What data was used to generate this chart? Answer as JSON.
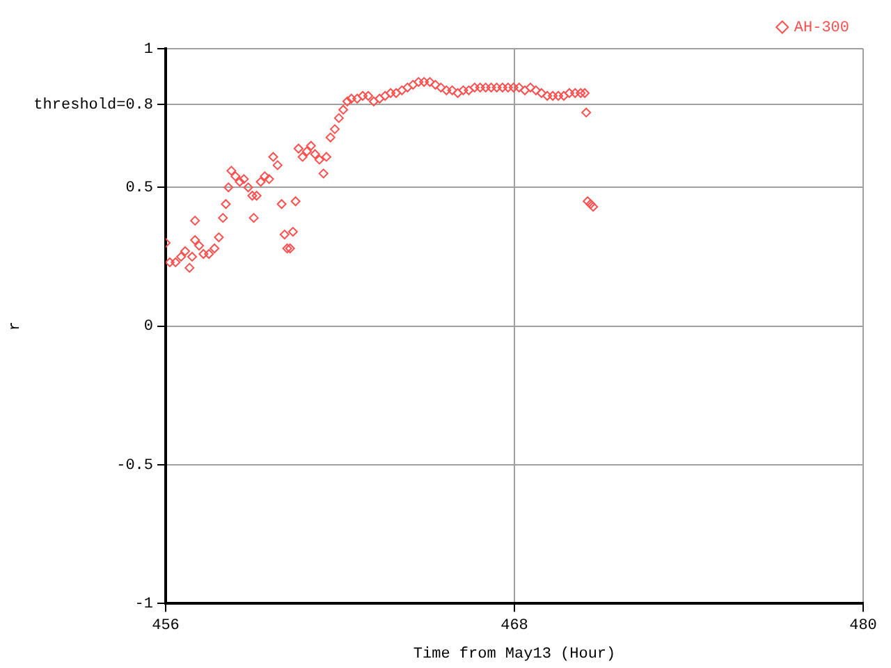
{
  "chart_data": {
    "type": "scatter",
    "xlabel": "Time from May13 (Hour)",
    "ylabel": "r",
    "xlim": [
      456,
      480
    ],
    "xticks": [
      456,
      468,
      480
    ],
    "ylim": [
      -1,
      1
    ],
    "yticks": [
      -1,
      -0.5,
      0,
      0.5,
      {
        "value": 0.8,
        "label": "threshold=0.8"
      },
      1
    ],
    "grid": true,
    "legend": "top right",
    "marker": "diamond",
    "series": [
      {
        "name": "AH-300",
        "color": "#ff5050",
        "x": [
          456.0,
          456.14,
          456.34,
          456.53,
          456.67,
          456.82,
          456.91,
          457.01,
          457.01,
          457.15,
          457.3,
          457.49,
          457.68,
          457.83,
          457.97,
          458.07,
          458.16,
          458.26,
          458.4,
          458.55,
          458.69,
          458.84,
          458.98,
          459.03,
          459.13,
          459.27,
          459.41,
          459.56,
          459.7,
          459.85,
          459.99,
          460.09,
          460.18,
          460.28,
          460.38,
          460.47,
          460.57,
          460.71,
          460.86,
          461.0,
          461.14,
          461.29,
          461.43,
          461.53,
          461.67,
          461.82,
          461.96,
          462.11,
          462.25,
          462.39,
          462.59,
          462.78,
          462.97,
          463.16,
          463.36,
          463.55,
          463.74,
          463.93,
          464.13,
          464.32,
          464.51,
          464.7,
          464.89,
          465.09,
          465.28,
          465.47,
          465.66,
          465.86,
          466.05,
          466.24,
          466.43,
          466.63,
          466.82,
          467.01,
          467.2,
          467.39,
          467.59,
          467.78,
          467.97,
          468.16,
          468.36,
          468.55,
          468.74,
          468.93,
          469.13,
          469.32,
          469.51,
          469.7,
          469.89,
          470.09,
          470.28,
          470.42,
          470.47,
          470.52,
          470.62,
          470.71
        ],
        "values": [
          0.3,
          0.23,
          0.23,
          0.25,
          0.27,
          0.21,
          0.25,
          0.31,
          0.38,
          0.29,
          0.26,
          0.26,
          0.28,
          0.32,
          0.39,
          0.44,
          0.5,
          0.56,
          0.54,
          0.52,
          0.53,
          0.5,
          0.47,
          0.39,
          0.47,
          0.52,
          0.54,
          0.53,
          0.61,
          0.58,
          0.44,
          0.33,
          0.28,
          0.28,
          0.34,
          0.45,
          0.64,
          0.61,
          0.63,
          0.65,
          0.62,
          0.6,
          0.55,
          0.61,
          0.68,
          0.71,
          0.75,
          0.78,
          0.81,
          0.82,
          0.82,
          0.83,
          0.83,
          0.81,
          0.82,
          0.83,
          0.84,
          0.84,
          0.85,
          0.86,
          0.87,
          0.88,
          0.88,
          0.88,
          0.87,
          0.86,
          0.85,
          0.85,
          0.84,
          0.85,
          0.85,
          0.86,
          0.86,
          0.86,
          0.86,
          0.86,
          0.86,
          0.86,
          0.86,
          0.86,
          0.85,
          0.86,
          0.85,
          0.84,
          0.83,
          0.83,
          0.83,
          0.83,
          0.84,
          0.84,
          0.84,
          0.84,
          0.77,
          0.45,
          0.44,
          0.43
        ]
      }
    ]
  }
}
